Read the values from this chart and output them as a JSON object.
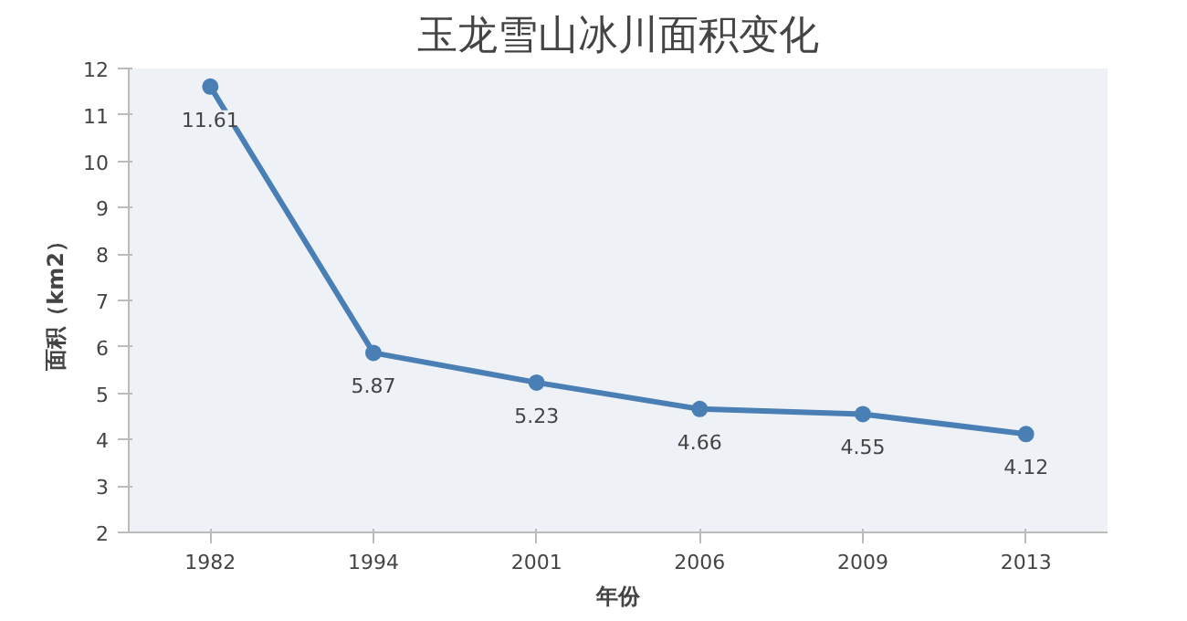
{
  "chart_data": {
    "type": "line",
    "title": "玉龙雪山冰川面积变化",
    "xlabel": "年份",
    "ylabel": "面积（km2）",
    "categories": [
      "1982",
      "1994",
      "2001",
      "2006",
      "2009",
      "2013"
    ],
    "series": [
      {
        "color": "#4a7fb5",
        "values": [
          11.61,
          5.87,
          5.23,
          4.66,
          4.55,
          4.12
        ]
      }
    ],
    "ylim": [
      2,
      12
    ],
    "yticks": [
      2,
      3,
      4,
      5,
      6,
      7,
      8,
      9,
      10,
      11,
      12
    ],
    "data_labels": true,
    "marker": "circle",
    "line_style": "solid",
    "grid": false
  }
}
